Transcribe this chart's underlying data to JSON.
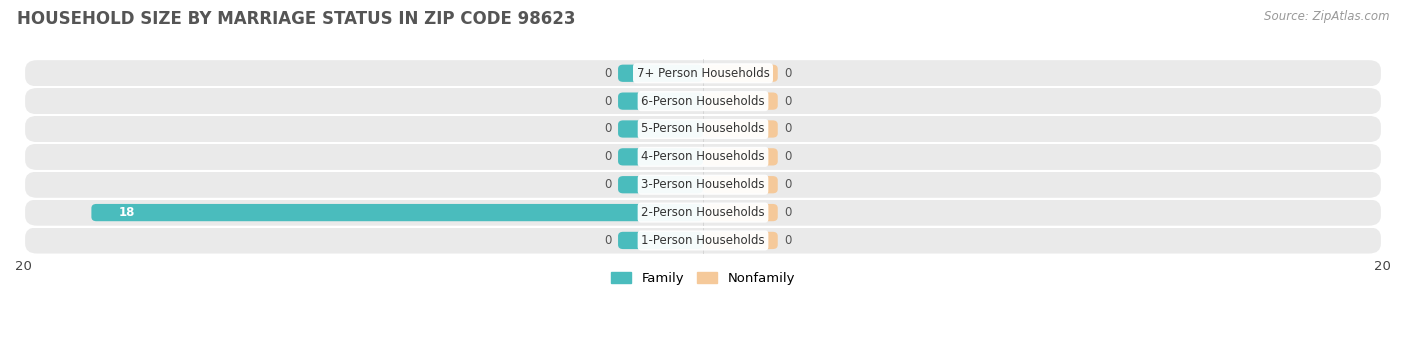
{
  "title": "HOUSEHOLD SIZE BY MARRIAGE STATUS IN ZIP CODE 98623",
  "source": "Source: ZipAtlas.com",
  "categories": [
    "7+ Person Households",
    "6-Person Households",
    "5-Person Households",
    "4-Person Households",
    "3-Person Households",
    "2-Person Households",
    "1-Person Households"
  ],
  "family_values": [
    0,
    0,
    0,
    0,
    0,
    18,
    0
  ],
  "nonfamily_values": [
    0,
    0,
    0,
    0,
    0,
    0,
    0
  ],
  "family_color": "#4ABCBD",
  "nonfamily_color": "#F5C99A",
  "row_bg_color": "#EAEAEA",
  "row_bg_color_alt": "#E0E0E0",
  "xlim_left": -20,
  "xlim_right": 20,
  "title_fontsize": 12,
  "source_fontsize": 8.5,
  "label_fontsize": 8.5,
  "value_label_fontsize": 8.5,
  "legend_labels": [
    "Family",
    "Nonfamily"
  ],
  "bar_height": 0.62,
  "min_bar_width": 2.5,
  "nonfam_bar_width": 2.2
}
